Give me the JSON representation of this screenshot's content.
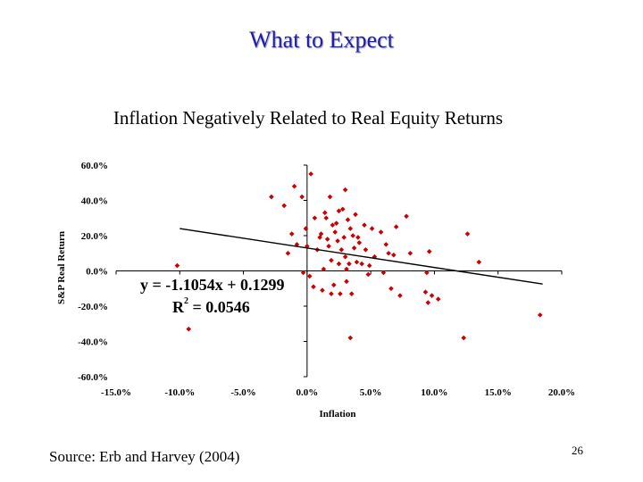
{
  "slide": {
    "title": "What to Expect",
    "subtitle": "Inflation Negatively Related to Real Equity Returns",
    "source": "Source: Erb and Harvey (2004)",
    "page_number": "26"
  },
  "chart_data": {
    "type": "scatter",
    "xlabel": "Inflation",
    "ylabel": "S&P Real Return",
    "xlim": [
      -0.15,
      0.2
    ],
    "ylim": [
      -0.6,
      0.6
    ],
    "x_ticks": [
      -0.15,
      -0.1,
      -0.05,
      0.0,
      0.05,
      0.1,
      0.15,
      0.2
    ],
    "x_tick_labels": [
      "-15.0%",
      "-10.0%",
      "-5.0%",
      "0.0%",
      "5.0%",
      "10.0%",
      "15.0%",
      "20.0%"
    ],
    "y_ticks": [
      0.6,
      0.4,
      0.2,
      0.0,
      -0.2,
      -0.4,
      -0.6
    ],
    "y_tick_labels": [
      "60.0%",
      "40.0%",
      "20.0%",
      "0.0%",
      "-20.0%",
      "-40.0%",
      "-60.0%"
    ],
    "marker_color": "#cc0000",
    "trendline": {
      "slope": -1.1054,
      "intercept": 0.1299,
      "x_range": [
        -0.1,
        0.185
      ]
    },
    "equation_label": "y = -1.1054x + 0.1299",
    "r2_label_base": "R",
    "r2_label_sup": "2",
    "r2_label_value": " = 0.0546",
    "points": [
      [
        -0.102,
        0.03
      ],
      [
        -0.093,
        -0.33
      ],
      [
        -0.028,
        0.42
      ],
      [
        -0.018,
        0.37
      ],
      [
        -0.015,
        0.1
      ],
      [
        -0.012,
        0.21
      ],
      [
        -0.01,
        0.48
      ],
      [
        -0.008,
        0.15
      ],
      [
        -0.004,
        0.42
      ],
      [
        -0.003,
        -0.01
      ],
      [
        -0.001,
        0.24
      ],
      [
        0.0,
        0.14
      ],
      [
        0.002,
        -0.03
      ],
      [
        0.003,
        0.55
      ],
      [
        0.005,
        -0.09
      ],
      [
        0.006,
        0.3
      ],
      [
        0.008,
        0.12
      ],
      [
        0.01,
        0.19
      ],
      [
        0.011,
        0.21
      ],
      [
        0.012,
        -0.11
      ],
      [
        0.013,
        0.01
      ],
      [
        0.014,
        0.33
      ],
      [
        0.015,
        0.3
      ],
      [
        0.016,
        0.18
      ],
      [
        0.017,
        0.14
      ],
      [
        0.018,
        0.42
      ],
      [
        0.019,
        0.06
      ],
      [
        0.019,
        -0.13
      ],
      [
        0.02,
        0.26
      ],
      [
        0.021,
        -0.08
      ],
      [
        0.022,
        0.22
      ],
      [
        0.023,
        0.27
      ],
      [
        0.024,
        0.17
      ],
      [
        0.025,
        0.04
      ],
      [
        0.025,
        0.34
      ],
      [
        0.026,
        -0.13
      ],
      [
        0.027,
        0.12
      ],
      [
        0.028,
        0.35
      ],
      [
        0.029,
        0.19
      ],
      [
        0.03,
        0.08
      ],
      [
        0.03,
        0.46
      ],
      [
        0.031,
        0.01
      ],
      [
        0.031,
        -0.06
      ],
      [
        0.032,
        0.29
      ],
      [
        0.033,
        0.04
      ],
      [
        0.034,
        0.24
      ],
      [
        0.034,
        -0.38
      ],
      [
        0.035,
        -0.13
      ],
      [
        0.036,
        0.2
      ],
      [
        0.037,
        0.13
      ],
      [
        0.038,
        0.32
      ],
      [
        0.039,
        0.05
      ],
      [
        0.04,
        0.19
      ],
      [
        0.041,
        0.16
      ],
      [
        0.043,
        0.04
      ],
      [
        0.045,
        0.26
      ],
      [
        0.046,
        0.12
      ],
      [
        0.048,
        -0.02
      ],
      [
        0.049,
        0.03
      ],
      [
        0.051,
        0.24
      ],
      [
        0.053,
        0.08
      ],
      [
        0.058,
        0.22
      ],
      [
        0.06,
        -0.01
      ],
      [
        0.062,
        0.15
      ],
      [
        0.064,
        0.1
      ],
      [
        0.066,
        -0.1
      ],
      [
        0.068,
        0.09
      ],
      [
        0.07,
        0.25
      ],
      [
        0.073,
        -0.14
      ],
      [
        0.078,
        0.31
      ],
      [
        0.081,
        0.1
      ],
      [
        0.093,
        -0.12
      ],
      [
        0.094,
        -0.01
      ],
      [
        0.095,
        -0.18
      ],
      [
        0.096,
        0.11
      ],
      [
        0.098,
        -0.14
      ],
      [
        0.103,
        -0.16
      ],
      [
        0.123,
        -0.38
      ],
      [
        0.126,
        0.21
      ],
      [
        0.135,
        0.05
      ],
      [
        0.183,
        -0.25
      ]
    ]
  }
}
